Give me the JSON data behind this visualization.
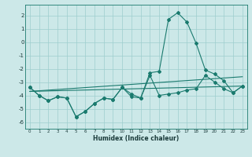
{
  "x": [
    0,
    1,
    2,
    3,
    4,
    5,
    6,
    7,
    8,
    9,
    10,
    11,
    12,
    13,
    14,
    15,
    16,
    17,
    18,
    19,
    20,
    21,
    22,
    23
  ],
  "line1": [
    -3.4,
    -4.0,
    -4.4,
    -4.1,
    -4.2,
    -5.6,
    -5.2,
    -4.6,
    -4.2,
    -4.3,
    -3.4,
    -4.1,
    -4.2,
    -2.5,
    -4.0,
    -3.9,
    -3.8,
    -3.6,
    -3.5,
    -2.5,
    -3.0,
    -3.5,
    -3.8,
    -3.3
  ],
  "line2": [
    -3.4,
    -4.0,
    -4.4,
    -4.1,
    -4.2,
    -5.6,
    -5.2,
    -4.6,
    -4.2,
    -4.3,
    -3.4,
    -3.9,
    -4.2,
    -2.3,
    -2.2,
    1.7,
    2.2,
    1.5,
    -0.1,
    -2.1,
    -2.4,
    -2.9,
    -3.8,
    -3.3
  ],
  "trend1_x": [
    0,
    23
  ],
  "trend1_y": [
    -3.7,
    -2.6
  ],
  "trend2_x": [
    0,
    23
  ],
  "trend2_y": [
    -3.7,
    -3.3
  ],
  "bg_color": "#cce8e8",
  "line_color": "#1a7a6e",
  "grid_color": "#9ecece",
  "xlabel": "Humidex (Indice chaleur)",
  "ylim": [
    -6.5,
    2.8
  ],
  "xlim": [
    -0.5,
    23.5
  ]
}
